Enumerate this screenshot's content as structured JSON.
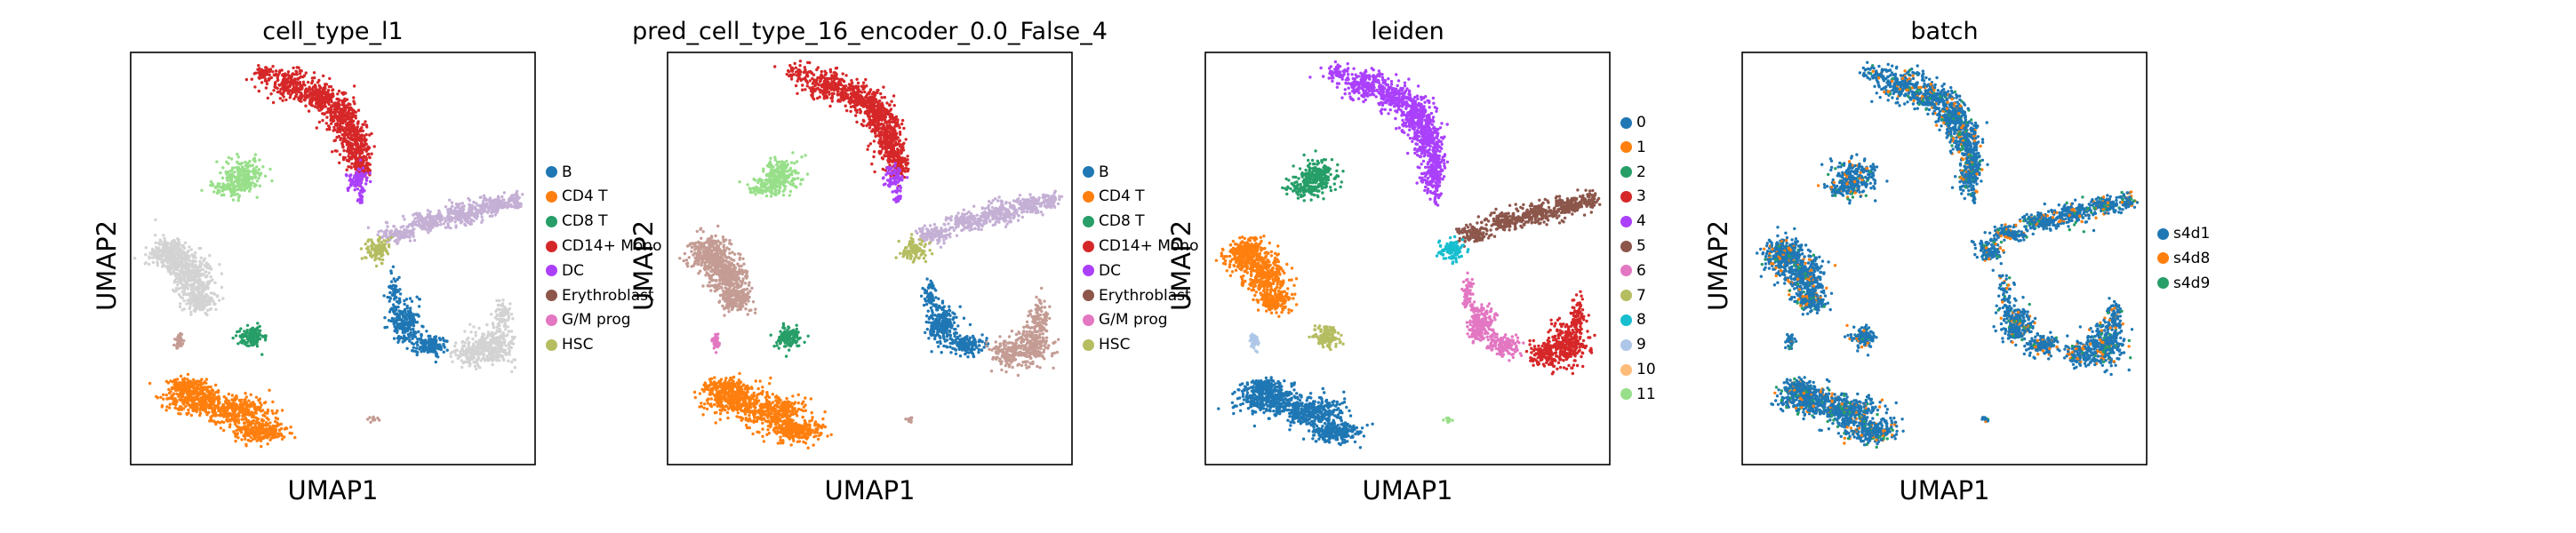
{
  "chart_data": [
    {
      "type": "scatter",
      "title": "cell_type_l1",
      "xlabel": "UMAP1",
      "ylabel": "UMAP2",
      "legend_position": "right",
      "grid": false,
      "legend": [
        {
          "label": "B",
          "color": "#1f77b4"
        },
        {
          "label": "CD4 T",
          "color": "#ff7f0e"
        },
        {
          "label": "CD8 T",
          "color": "#279e68"
        },
        {
          "label": "CD14+ Mono",
          "color": "#d62728"
        },
        {
          "label": "DC",
          "color": "#aa40fc"
        },
        {
          "label": "Erythroblast",
          "color": "#8c564b"
        },
        {
          "label": "G/M prog",
          "color": "#e377c2"
        },
        {
          "label": "HSC",
          "color": "#b5bd61"
        }
      ],
      "clusters": {
        "mono_stream": "#d62728",
        "mono_tip": "#aa40fc",
        "top_left": "#98df8a",
        "left_mass": "#d3d3d3",
        "left_small": "#279e68",
        "left_tiny": "#c49c94",
        "bottom": "#ff7f0e",
        "ery_stream": "#c5b0d5",
        "ery_head": "#b5bd61",
        "right_lower": "#d3d3d3",
        "right_lower_left": "#1f77b4",
        "stray": "#c49c94"
      }
    },
    {
      "type": "scatter",
      "title": "pred_cell_type_16_encoder_0.0_False_4",
      "xlabel": "UMAP1",
      "ylabel": "UMAP2",
      "legend_position": "right",
      "grid": false,
      "legend": [
        {
          "label": "B",
          "color": "#1f77b4"
        },
        {
          "label": "CD4 T",
          "color": "#ff7f0e"
        },
        {
          "label": "CD8 T",
          "color": "#279e68"
        },
        {
          "label": "CD14+ Mono",
          "color": "#d62728"
        },
        {
          "label": "DC",
          "color": "#aa40fc"
        },
        {
          "label": "Erythroblast",
          "color": "#8c564b"
        },
        {
          "label": "G/M prog",
          "color": "#e377c2"
        },
        {
          "label": "HSC",
          "color": "#b5bd61"
        }
      ],
      "clusters": {
        "mono_stream": "#d62728",
        "mono_tip": "#aa40fc",
        "top_left": "#98df8a",
        "left_mass": "#c49c94",
        "left_small": "#279e68",
        "left_tiny": "#e377c2",
        "bottom": "#ff7f0e",
        "ery_stream": "#c5b0d5",
        "ery_head": "#b5bd61",
        "right_lower": "#c49c94",
        "right_lower_left": "#1f77b4",
        "stray": "#c49c94"
      }
    },
    {
      "type": "scatter",
      "title": "leiden",
      "xlabel": "UMAP1",
      "ylabel": "UMAP2",
      "legend_position": "right",
      "grid": false,
      "legend": [
        {
          "label": "0",
          "color": "#1f77b4"
        },
        {
          "label": "1",
          "color": "#ff7f0e"
        },
        {
          "label": "2",
          "color": "#279e68"
        },
        {
          "label": "3",
          "color": "#d62728"
        },
        {
          "label": "4",
          "color": "#aa40fc"
        },
        {
          "label": "5",
          "color": "#8c564b"
        },
        {
          "label": "6",
          "color": "#e377c2"
        },
        {
          "label": "7",
          "color": "#b5bd61"
        },
        {
          "label": "8",
          "color": "#17becf"
        },
        {
          "label": "9",
          "color": "#aec7e8"
        },
        {
          "label": "10",
          "color": "#ffbb78"
        },
        {
          "label": "11",
          "color": "#98df8a"
        }
      ],
      "clusters": {
        "mono_stream": "#aa40fc",
        "mono_tip": "#aa40fc",
        "top_left": "#279e68",
        "left_mass": "#ff7f0e",
        "left_small": "#b5bd61",
        "left_tiny": "#aec7e8",
        "bottom": "#1f77b4",
        "ery_stream": "#8c564b",
        "ery_head": "#17becf",
        "right_lower": "#d62728",
        "right_lower_left": "#e377c2",
        "stray": "#98df8a"
      }
    },
    {
      "type": "scatter",
      "title": "batch",
      "xlabel": "UMAP1",
      "ylabel": "UMAP2",
      "legend_position": "right",
      "grid": false,
      "legend": [
        {
          "label": "s4d1",
          "color": "#1f77b4"
        },
        {
          "label": "s4d8",
          "color": "#ff7f0e"
        },
        {
          "label": "s4d9",
          "color": "#279e68"
        }
      ],
      "clusters": {
        "mono_stream": "#1f77b4",
        "mono_tip": "#1f77b4",
        "top_left": "#1f77b4",
        "left_mass": "#1f77b4",
        "left_small": "#1f77b4",
        "left_tiny": "#1f77b4",
        "bottom": "#1f77b4",
        "ery_stream": "#1f77b4",
        "ery_head": "#1f77b4",
        "right_lower": "#1f77b4",
        "right_lower_left": "#1f77b4",
        "stray": "#1f77b4"
      }
    }
  ]
}
